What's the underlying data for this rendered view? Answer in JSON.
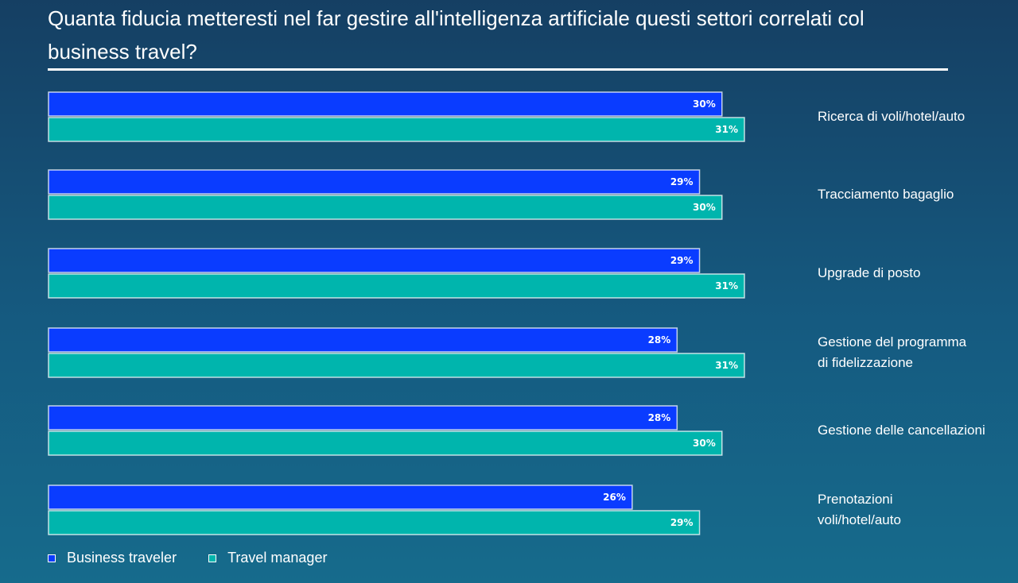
{
  "chart_data": {
    "type": "bar",
    "orientation": "horizontal",
    "title": "Quanta fiducia metteresti nel far gestire all'intelligenza artificiale questi settori correlati col business travel?",
    "categories": [
      "Ricerca di voli/hotel/auto",
      "Tracciamento bagaglio",
      "Upgrade di posto",
      "Gestione del programma di fidelizzazione",
      "Gestione delle cancellazioni",
      "Prenotazioni voli/hotel/auto"
    ],
    "category_lines": [
      [
        "Ricerca di voli/hotel/auto"
      ],
      [
        "Tracciamento bagaglio"
      ],
      [
        "Upgrade di posto"
      ],
      [
        "Gestione del programma",
        "di fidelizzazione"
      ],
      [
        "Gestione delle cancellazioni"
      ],
      [
        "Prenotazioni",
        "voli/hotel/auto"
      ]
    ],
    "series": [
      {
        "name": "Business traveler",
        "color": "#0a3cff",
        "values": [
          30,
          29,
          29,
          28,
          28,
          26
        ],
        "labels": [
          "30%",
          "29%",
          "29%",
          "28%",
          "28%",
          "26%"
        ]
      },
      {
        "name": "Travel manager",
        "color": "#00b5ad",
        "values": [
          31,
          30,
          31,
          31,
          30,
          29
        ],
        "labels": [
          "31%",
          "30%",
          "31%",
          "31%",
          "30%",
          "29%"
        ]
      }
    ],
    "xlim": [
      0,
      31
    ],
    "value_unit": "%",
    "grid": false,
    "legend_position": "bottom-left"
  }
}
